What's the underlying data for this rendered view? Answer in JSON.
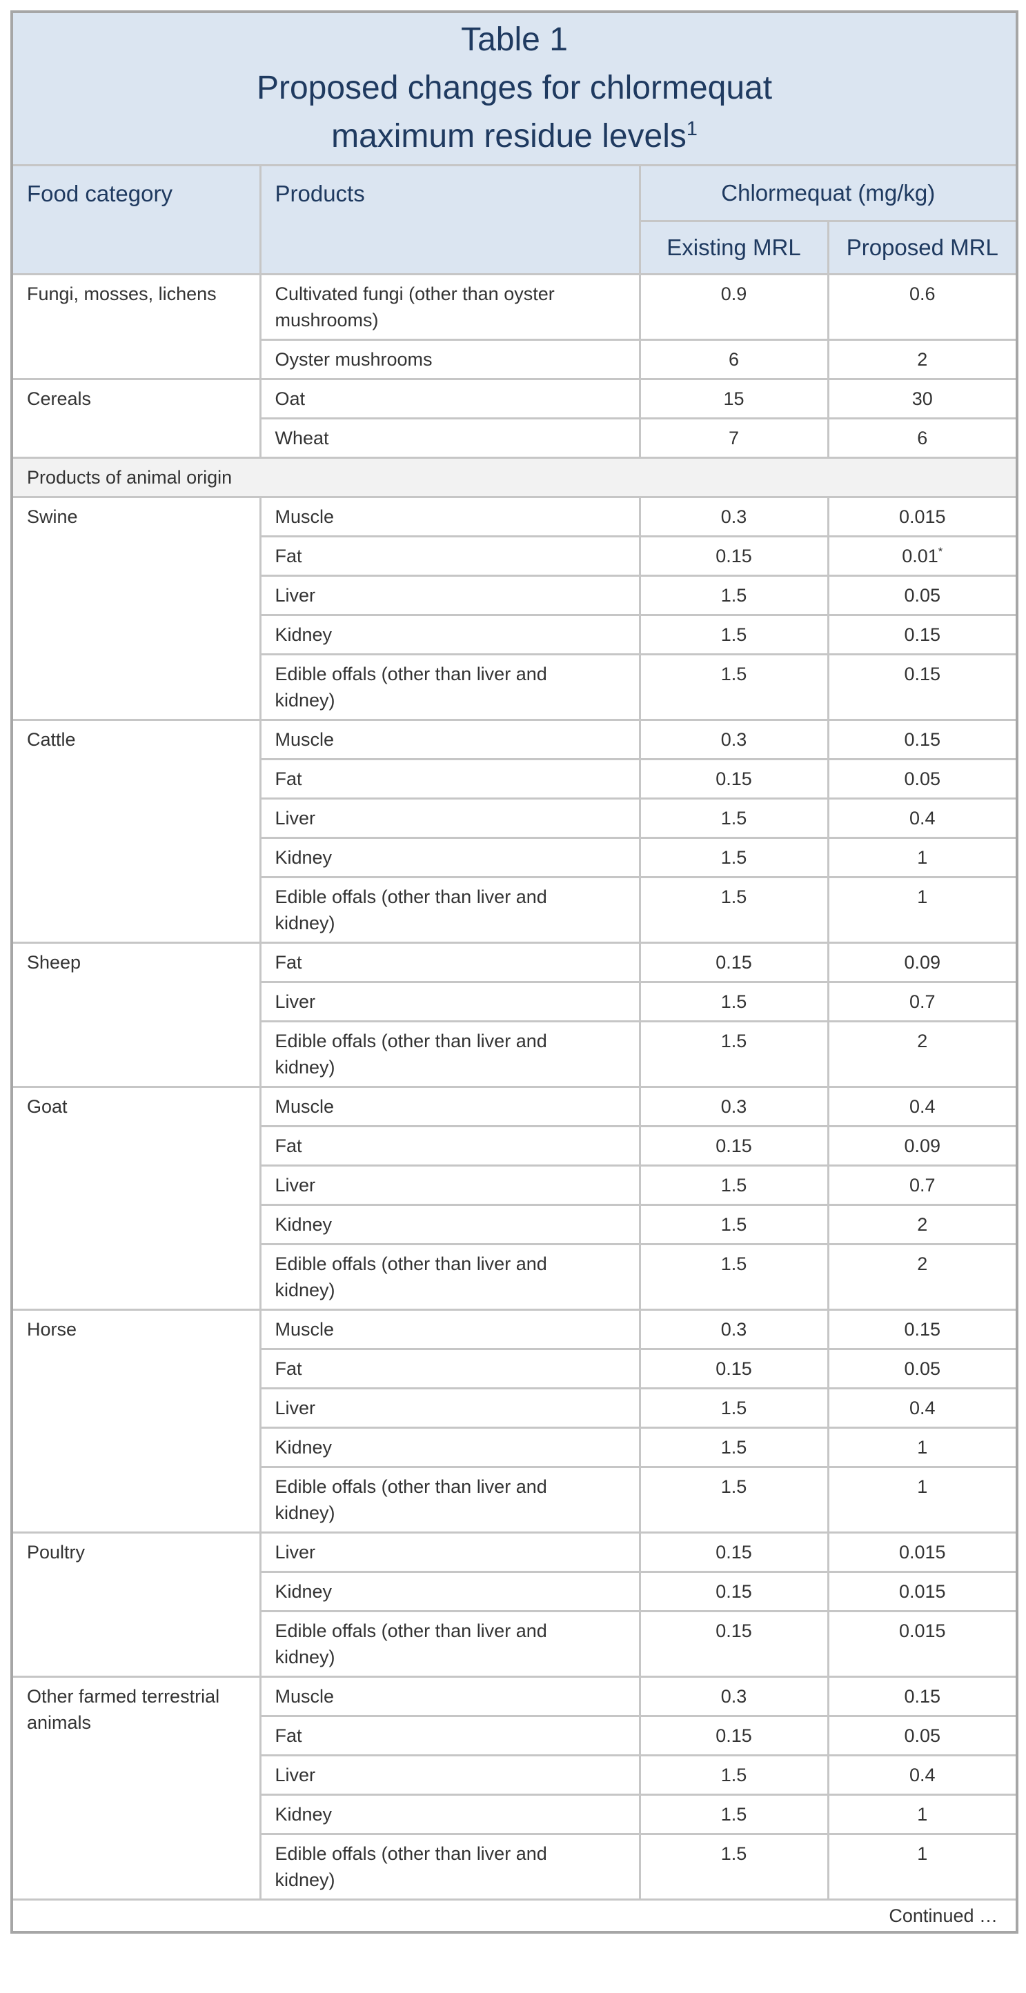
{
  "title": {
    "line1": "Table 1",
    "line2": "Proposed changes for chlormequat",
    "line3": "maximum residue levels",
    "superscript": "1"
  },
  "header": {
    "food_category": "Food category",
    "products": "Products",
    "chlormequat_group": "Chlormequat (mg/kg)",
    "existing_mrl": "Existing MRL",
    "proposed_mrl": "Proposed MRL"
  },
  "footer": {
    "continued": "Continued …"
  },
  "colors": {
    "header_background": "#dbe5f1",
    "title_text": "#1f3a60",
    "section_background": "#f2f2f2",
    "grid_border": "#c6c6c6",
    "outer_border": "#a6a6a6",
    "body_text": "#333333"
  },
  "table": {
    "sections": [
      {
        "category": "Fungi, mosses, lichens",
        "rows": [
          {
            "product": "Cultivated fungi (other than oyster mushrooms)",
            "existing": "0.9",
            "proposed": "0.6"
          },
          {
            "product": "Oyster mushrooms",
            "existing": "6",
            "proposed": "2"
          }
        ]
      },
      {
        "category": "Cereals",
        "rows": [
          {
            "product": "Oat",
            "existing": "15",
            "proposed": "30"
          },
          {
            "product": "Wheat",
            "existing": "7",
            "proposed": "6"
          }
        ]
      },
      {
        "section_header": "Products of animal origin"
      },
      {
        "category": "Swine",
        "rows": [
          {
            "product": "Muscle",
            "existing": "0.3",
            "proposed": "0.015"
          },
          {
            "product": "Fat",
            "existing": "0.15",
            "proposed": "0.01*"
          },
          {
            "product": "Liver",
            "existing": "1.5",
            "proposed": "0.05"
          },
          {
            "product": "Kidney",
            "existing": "1.5",
            "proposed": "0.15"
          },
          {
            "product": "Edible offals (other than liver and kidney)",
            "existing": "1.5",
            "proposed": "0.15"
          }
        ]
      },
      {
        "category": "Cattle",
        "rows": [
          {
            "product": "Muscle",
            "existing": "0.3",
            "proposed": "0.15"
          },
          {
            "product": "Fat",
            "existing": "0.15",
            "proposed": "0.05"
          },
          {
            "product": "Liver",
            "existing": "1.5",
            "proposed": "0.4"
          },
          {
            "product": "Kidney",
            "existing": "1.5",
            "proposed": "1"
          },
          {
            "product": "Edible offals (other than liver and kidney)",
            "existing": "1.5",
            "proposed": "1"
          }
        ]
      },
      {
        "category": "Sheep",
        "rows": [
          {
            "product": "Fat",
            "existing": "0.15",
            "proposed": "0.09"
          },
          {
            "product": "Liver",
            "existing": "1.5",
            "proposed": "0.7"
          },
          {
            "product": "Edible offals (other than liver and kidney)",
            "existing": "1.5",
            "proposed": "2"
          }
        ]
      },
      {
        "category": "Goat",
        "rows": [
          {
            "product": "Muscle",
            "existing": "0.3",
            "proposed": "0.4"
          },
          {
            "product": "Fat",
            "existing": "0.15",
            "proposed": "0.09"
          },
          {
            "product": "Liver",
            "existing": "1.5",
            "proposed": "0.7"
          },
          {
            "product": "Kidney",
            "existing": "1.5",
            "proposed": "2"
          },
          {
            "product": "Edible offals (other than liver and kidney)",
            "existing": "1.5",
            "proposed": "2"
          }
        ]
      },
      {
        "category": "Horse",
        "rows": [
          {
            "product": "Muscle",
            "existing": "0.3",
            "proposed": "0.15"
          },
          {
            "product": "Fat",
            "existing": "0.15",
            "proposed": "0.05"
          },
          {
            "product": "Liver",
            "existing": "1.5",
            "proposed": "0.4"
          },
          {
            "product": "Kidney",
            "existing": "1.5",
            "proposed": "1"
          },
          {
            "product": "Edible offals (other than liver and kidney)",
            "existing": "1.5",
            "proposed": "1"
          }
        ]
      },
      {
        "category": "Poultry",
        "rows": [
          {
            "product": "Liver",
            "existing": "0.15",
            "proposed": "0.015"
          },
          {
            "product": "Kidney",
            "existing": "0.15",
            "proposed": "0.015"
          },
          {
            "product": "Edible offals (other than liver and kidney)",
            "existing": "0.15",
            "proposed": "0.015"
          }
        ]
      },
      {
        "category": "Other farmed terrestrial animals",
        "rows": [
          {
            "product": "Muscle",
            "existing": "0.3",
            "proposed": "0.15"
          },
          {
            "product": "Fat",
            "existing": "0.15",
            "proposed": "0.05"
          },
          {
            "product": "Liver",
            "existing": "1.5",
            "proposed": "0.4"
          },
          {
            "product": "Kidney",
            "existing": "1.5",
            "proposed": "1"
          },
          {
            "product": "Edible offals (other than liver and kidney)",
            "existing": "1.5",
            "proposed": "1"
          }
        ]
      }
    ]
  }
}
